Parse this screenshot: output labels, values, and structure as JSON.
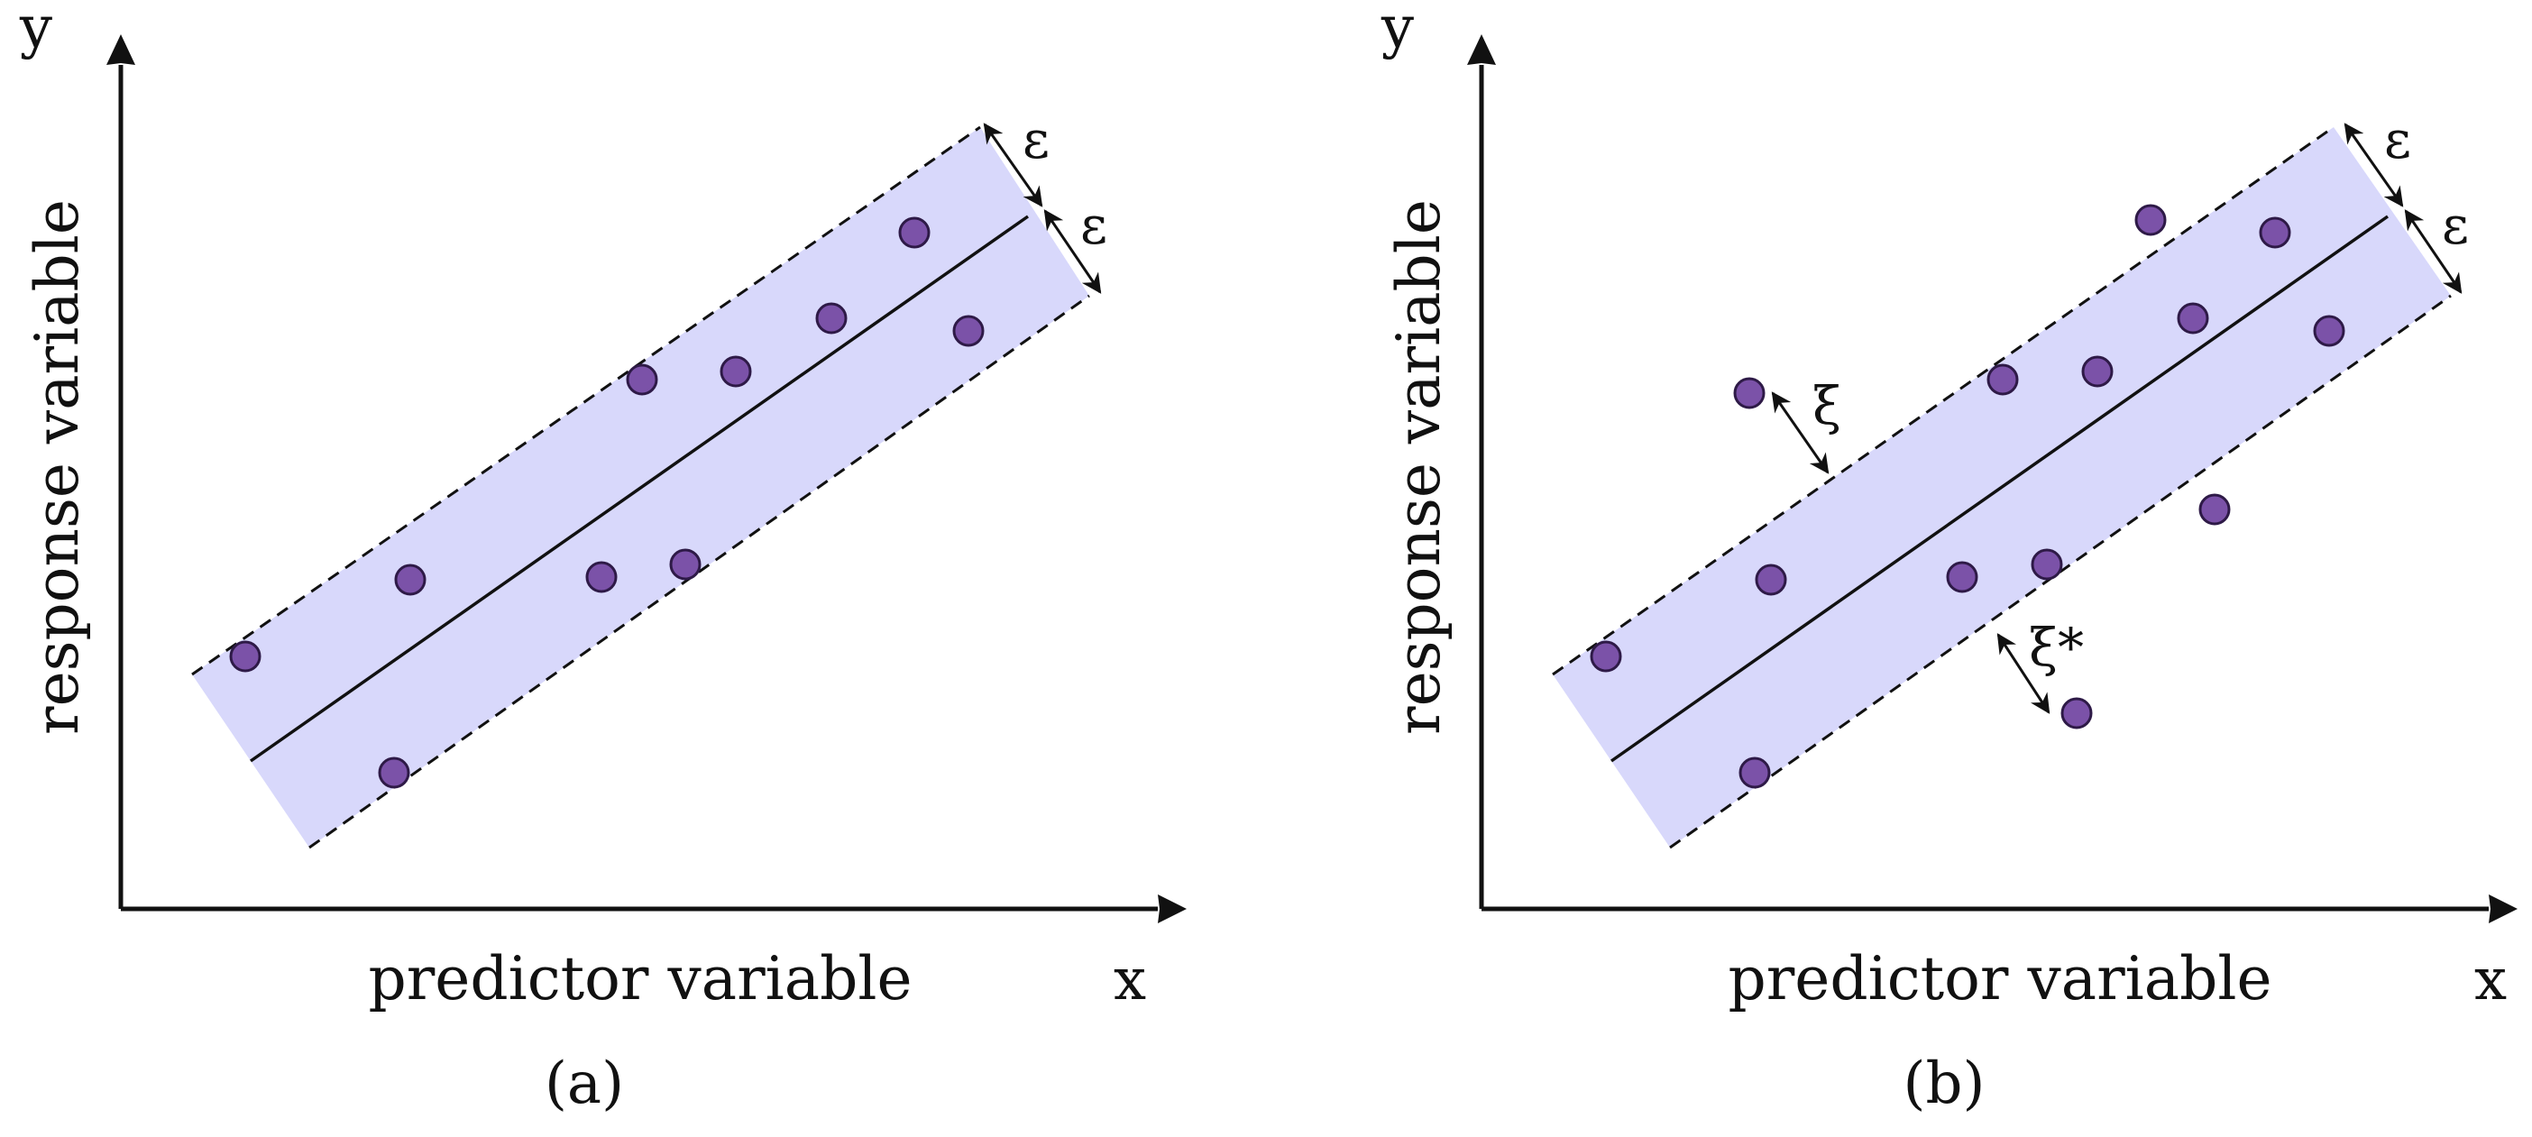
{
  "figure": {
    "colors": {
      "tube_fill": "#d8d8fb",
      "point_fill": "#7b52a8",
      "point_stroke": "#2e1a47",
      "line": "#111111"
    },
    "panels": [
      {
        "id": "a",
        "caption": "(a)",
        "x_axis_letter": "x",
        "y_axis_letter": "y",
        "x_axis_title": "predictor variable",
        "y_axis_title": "response variable",
        "epsilon_upper": "ε",
        "epsilon_lower": "ε",
        "slack_upper": "",
        "slack_lower": ""
      },
      {
        "id": "b",
        "caption": "(b)",
        "x_axis_letter": "x",
        "y_axis_letter": "y",
        "x_axis_title": "predictor variable",
        "y_axis_title": "response variable",
        "epsilon_upper": "ε",
        "epsilon_lower": "ε",
        "slack_upper": "ξ",
        "slack_lower": "ξ*"
      }
    ]
  }
}
